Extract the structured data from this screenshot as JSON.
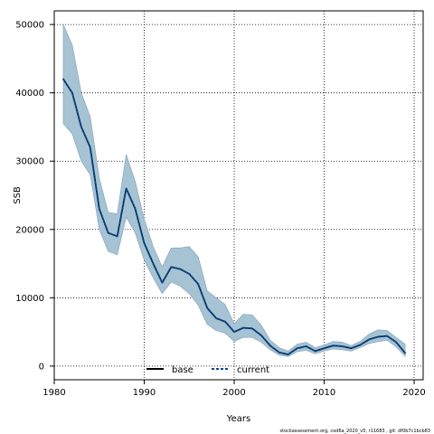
{
  "chart_data": {
    "type": "line",
    "xlabel": "Years",
    "ylabel": "SSB",
    "xlim": [
      1980,
      2021
    ],
    "ylim": [
      -2000,
      52000
    ],
    "xticks": [
      1980,
      1990,
      2000,
      2010,
      2020
    ],
    "yticks": [
      0,
      10000,
      20000,
      30000,
      40000,
      50000
    ],
    "grid": true,
    "legend_placement": "bottom-center",
    "colors": {
      "band": "#a6c3d4",
      "band_edge": "#7f9fb3",
      "base": "#000000",
      "current": "#0b4a8a"
    },
    "x": [
      1981,
      1982,
      1983,
      1984,
      1985,
      1986,
      1987,
      1988,
      1989,
      1990,
      1991,
      1992,
      1993,
      1994,
      1995,
      1996,
      1997,
      1998,
      1999,
      2000,
      2001,
      2002,
      2003,
      2004,
      2005,
      2006,
      2007,
      2008,
      2009,
      2010,
      2011,
      2012,
      2013,
      2014,
      2015,
      2016,
      2017,
      2018,
      2019
    ],
    "series": [
      {
        "name": "base",
        "style": "solid",
        "values": [
          42000,
          40000,
          35000,
          32000,
          23000,
          19500,
          19000,
          26000,
          23000,
          18000,
          15000,
          12200,
          14500,
          14200,
          13500,
          12000,
          8500,
          7000,
          6500,
          5000,
          5600,
          5500,
          4500,
          3000,
          2000,
          1700,
          2600,
          2900,
          2200,
          2600,
          3000,
          2900,
          2600,
          3100,
          3900,
          4300,
          4400,
          3500,
          1900
        ]
      },
      {
        "name": "current",
        "style": "dotted",
        "values": [
          42000,
          40000,
          35000,
          32000,
          23000,
          19500,
          19000,
          26000,
          23000,
          18000,
          15000,
          12200,
          14500,
          14200,
          13500,
          12000,
          8500,
          7000,
          6500,
          5000,
          5600,
          5500,
          4500,
          3000,
          2000,
          1700,
          2600,
          2900,
          2200,
          2600,
          3000,
          2900,
          2600,
          3100,
          3900,
          4300,
          4400,
          3500,
          1900
        ]
      }
    ],
    "band": {
      "upper": [
        50000,
        47000,
        40000,
        36500,
        27500,
        22500,
        22300,
        31000,
        27000,
        21500,
        17500,
        14500,
        17300,
        17300,
        17500,
        16000,
        11000,
        10000,
        9000,
        6200,
        7600,
        7500,
        6000,
        3800,
        2700,
        2200,
        3200,
        3500,
        2700,
        3100,
        3600,
        3500,
        3000,
        3600,
        4700,
        5300,
        5200,
        4200,
        3200
      ],
      "lower": [
        35500,
        34000,
        30000,
        28000,
        20000,
        16800,
        16300,
        21800,
        19500,
        15500,
        12900,
        10600,
        12300,
        11700,
        10600,
        8900,
        6100,
        5200,
        4800,
        3600,
        4200,
        4200,
        3500,
        2400,
        1600,
        1400,
        2100,
        2300,
        1800,
        2200,
        2500,
        2400,
        2200,
        2700,
        3300,
        3600,
        3800,
        2800,
        1400
      ]
    },
    "footer": "stockassessment.org, cod6a_2020_v5, r11683 , git: df0b7c1bcb83"
  }
}
